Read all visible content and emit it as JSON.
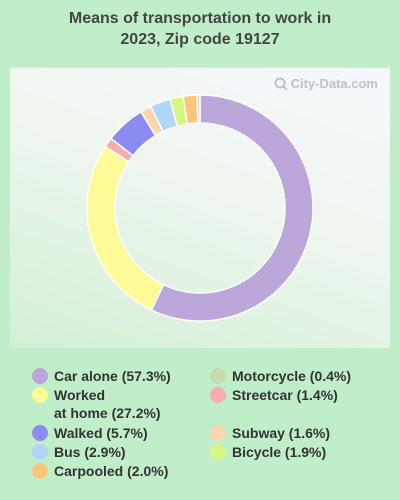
{
  "chart_data": {
    "type": "pie",
    "title_line1": "Means of transportation to work in",
    "title_line2": "2023, Zip code 19127",
    "watermark": "City-Data.com",
    "slices": [
      {
        "label": "Car alone",
        "value": 57.3,
        "legend": "Car alone (57.3%)",
        "color": "#bba7da"
      },
      {
        "label": "Worked at home",
        "value": 27.2,
        "legend_line1": "Worked",
        "legend_line2": "at home (27.2%)",
        "color": "#fdfb97"
      },
      {
        "label": "Streetcar",
        "value": 1.4,
        "legend": "Streetcar (1.4%)",
        "color": "#f6adb1"
      },
      {
        "label": "Walked",
        "value": 5.7,
        "legend": "Walked (5.7%)",
        "color": "#8c8cf0"
      },
      {
        "label": "Subway",
        "value": 1.6,
        "legend": "Subway (1.6%)",
        "color": "#fbd6ae"
      },
      {
        "label": "Bus",
        "value": 2.9,
        "legend": "Bus (2.9%)",
        "color": "#b0d8f6"
      },
      {
        "label": "Bicycle",
        "value": 1.9,
        "legend": "Bicycle (1.9%)",
        "color": "#d5f781"
      },
      {
        "label": "Carpooled",
        "value": 2.0,
        "legend": "Carpooled (2.0%)",
        "color": "#f9c77a"
      },
      {
        "label": "Motorcycle",
        "value": 0.4,
        "legend": "Motorcycle (0.4%)",
        "color": "#c5dcae"
      }
    ]
  }
}
